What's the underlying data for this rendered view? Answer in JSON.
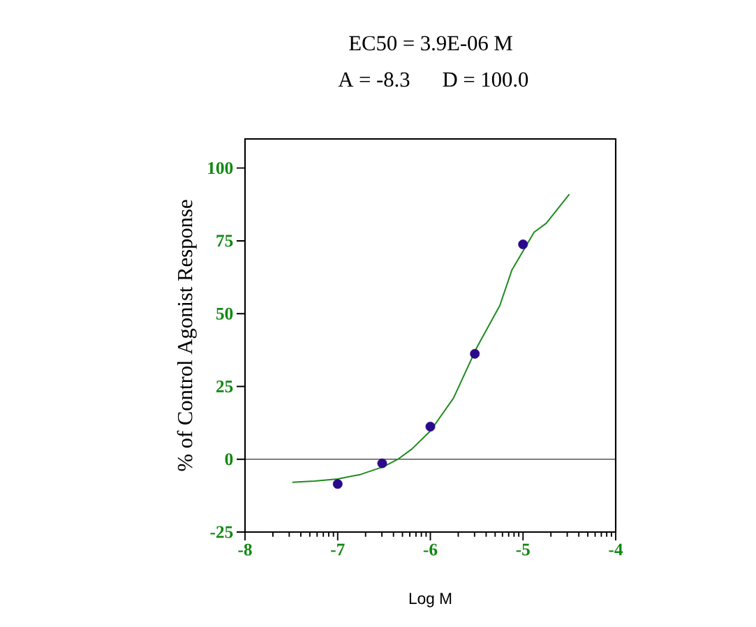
{
  "chart_data": {
    "type": "scatter",
    "title": "EC50 = 3.9E-06 M",
    "subtitle": "A = -8.3      D = 100.0",
    "xlabel": "Log M",
    "ylabel": "% of Control Agonist Response",
    "xlim": [
      -8,
      -4
    ],
    "ylim": [
      -25,
      110
    ],
    "xticks": [
      -8,
      {
        "value": -7.699,
        "label": null
      },
      {
        "value": -7.523,
        "label": null
      },
      {
        "value": -7.398,
        "label": null
      },
      {
        "value": -7.301,
        "label": null
      },
      {
        "value": -7.222,
        "label": null
      },
      {
        "value": -7.155,
        "label": null
      },
      {
        "value": -7.097,
        "label": null
      },
      {
        "value": -7.046,
        "label": null
      },
      -7,
      {
        "value": -6.699,
        "label": null
      },
      {
        "value": -6.523,
        "label": null
      },
      {
        "value": -6.398,
        "label": null
      },
      {
        "value": -6.301,
        "label": null
      },
      {
        "value": -6.222,
        "label": null
      },
      {
        "value": -6.155,
        "label": null
      },
      {
        "value": -6.097,
        "label": null
      },
      {
        "value": -6.046,
        "label": null
      },
      -6,
      {
        "value": -5.699,
        "label": null
      },
      {
        "value": -5.523,
        "label": null
      },
      {
        "value": -5.398,
        "label": null
      },
      {
        "value": -5.301,
        "label": null
      },
      {
        "value": -5.222,
        "label": null
      },
      {
        "value": -5.155,
        "label": null
      },
      {
        "value": -5.097,
        "label": null
      },
      {
        "value": -5.046,
        "label": null
      },
      -5,
      {
        "value": -4.699,
        "label": null
      },
      {
        "value": -4.523,
        "label": null
      },
      {
        "value": -4.398,
        "label": null
      },
      {
        "value": -4.301,
        "label": null
      },
      {
        "value": -4.222,
        "label": null
      },
      {
        "value": -4.155,
        "label": null
      },
      {
        "value": -4.097,
        "label": null
      },
      {
        "value": -4.046,
        "label": null
      },
      -4
    ],
    "yticks": [
      -25,
      0,
      25,
      50,
      75,
      100
    ],
    "ref_lines": [
      {
        "axis": "y",
        "value": 0,
        "color": "#000000"
      }
    ],
    "series": [
      {
        "type": "line",
        "color": "#1e8c1e",
        "marker": "none",
        "x": [
          -7.49,
          -7.25,
          -7,
          -6.75,
          -6.5,
          -6.35,
          -6.2,
          -6,
          -5.75,
          -5.5,
          -5.25,
          -5.12,
          -4.88,
          -4.75,
          -4.5
        ],
        "values": [
          -7.9,
          -7.5,
          -6.8,
          -5.2,
          -2.5,
          0,
          3.5,
          9.7,
          21,
          38.3,
          52.8,
          65,
          78,
          81,
          91
        ]
      },
      {
        "color": "#2a0a8a",
        "marker": "circle",
        "x": [
          -7,
          -6.52,
          -6,
          -5.52,
          -5
        ],
        "values": [
          -8.5,
          -1.4,
          11.2,
          36.2,
          73.8
        ]
      }
    ]
  }
}
